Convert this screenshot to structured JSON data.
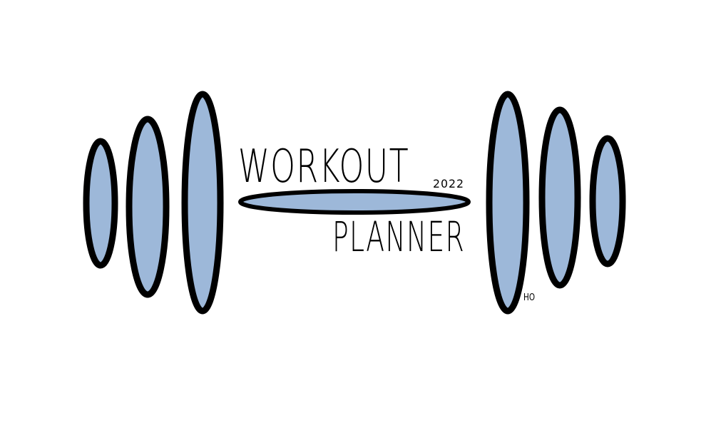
{
  "logo": {
    "title_line1": "WORKOUT",
    "title_line2": "PLANNER",
    "year": "2022",
    "signature": "HO"
  },
  "colors": {
    "plate_fill": "#9db8d9",
    "outline": "#000000",
    "background": "#ffffff"
  }
}
